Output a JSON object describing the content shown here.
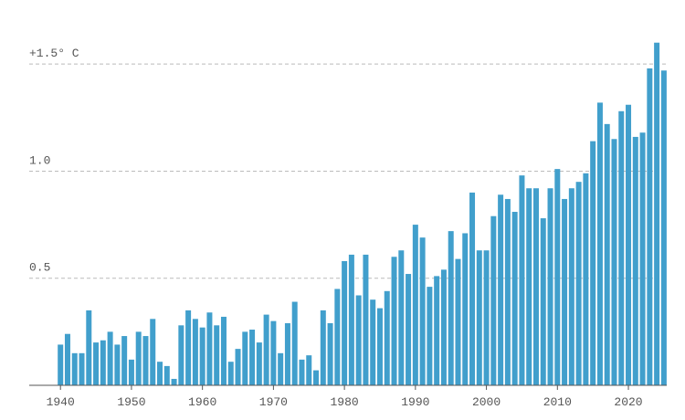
{
  "chart_data": {
    "type": "bar",
    "x": [
      1940,
      1941,
      1942,
      1943,
      1944,
      1945,
      1946,
      1947,
      1948,
      1949,
      1950,
      1951,
      1952,
      1953,
      1954,
      1955,
      1956,
      1957,
      1958,
      1959,
      1960,
      1961,
      1962,
      1963,
      1964,
      1965,
      1966,
      1967,
      1968,
      1969,
      1970,
      1971,
      1972,
      1973,
      1974,
      1975,
      1976,
      1977,
      1978,
      1979,
      1980,
      1981,
      1982,
      1983,
      1984,
      1985,
      1986,
      1987,
      1988,
      1989,
      1990,
      1991,
      1992,
      1993,
      1994,
      1995,
      1996,
      1997,
      1998,
      1999,
      2000,
      2001,
      2002,
      2003,
      2004,
      2005,
      2006,
      2007,
      2008,
      2009,
      2010,
      2011,
      2012,
      2013,
      2014,
      2015,
      2016,
      2017,
      2018,
      2019,
      2020,
      2021,
      2022,
      2023,
      2024,
      2025
    ],
    "values": [
      0.19,
      0.24,
      0.15,
      0.15,
      0.35,
      0.2,
      0.21,
      0.25,
      0.19,
      0.23,
      0.12,
      0.25,
      0.23,
      0.31,
      0.11,
      0.09,
      0.03,
      0.28,
      0.35,
      0.31,
      0.27,
      0.34,
      0.28,
      0.32,
      0.11,
      0.17,
      0.25,
      0.26,
      0.2,
      0.33,
      0.3,
      0.15,
      0.29,
      0.39,
      0.12,
      0.14,
      0.07,
      0.35,
      0.29,
      0.45,
      0.58,
      0.61,
      0.42,
      0.61,
      0.4,
      0.36,
      0.44,
      0.6,
      0.63,
      0.52,
      0.75,
      0.69,
      0.46,
      0.51,
      0.54,
      0.72,
      0.59,
      0.71,
      0.9,
      0.63,
      0.63,
      0.79,
      0.89,
      0.87,
      0.81,
      0.98,
      0.92,
      0.92,
      0.78,
      0.92,
      1.01,
      0.87,
      0.92,
      0.95,
      0.99,
      1.14,
      1.32,
      1.22,
      1.15,
      1.28,
      1.31,
      1.16,
      1.18,
      1.48,
      1.6,
      1.47
    ],
    "color": "#419fcc",
    "xlim": [
      1935.6,
      2025.4
    ],
    "xticks": [
      1940,
      1950,
      1960,
      1970,
      1980,
      1990,
      2000,
      2010,
      2020
    ],
    "ylim": [
      0,
      1.65
    ],
    "yticks": [
      0.5,
      {
        "value": 1.0,
        "label": "1.0"
      },
      {
        "value": 1.5,
        "label": "+1.5° C"
      }
    ],
    "grid": true
  }
}
